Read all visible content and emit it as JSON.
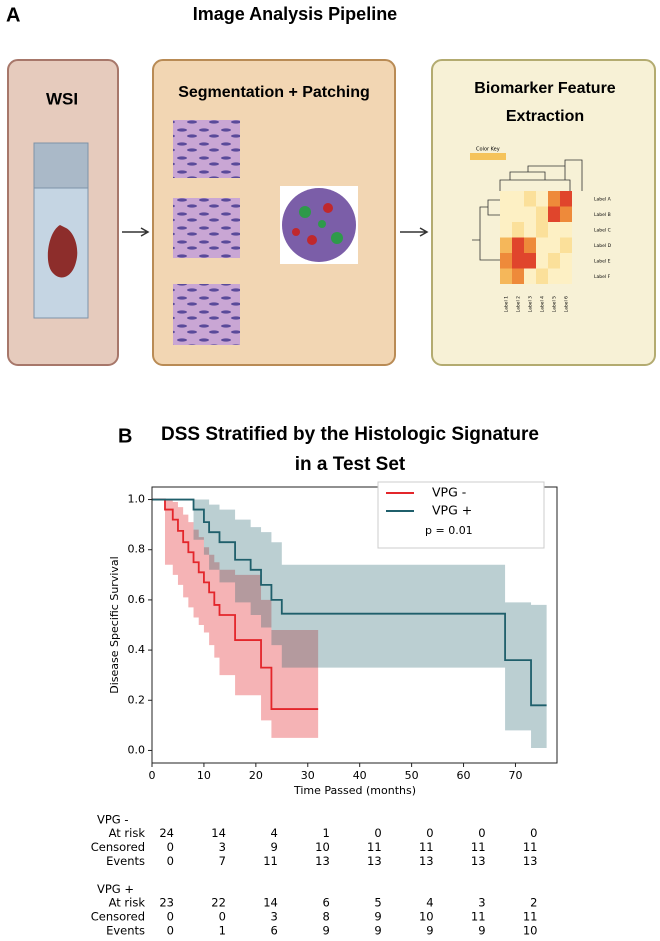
{
  "panel_a": {
    "label": "A",
    "title": "Image Analysis Pipeline",
    "boxes": [
      "WSI",
      "Segmentation + Patching",
      "Biomarker Feature Extraction"
    ],
    "heatmap": {
      "key_label": "Color Key",
      "row_labels": [
        "Label A",
        "Label B",
        "Label C",
        "Label D",
        "Label E",
        "Label F"
      ],
      "col_labels": [
        "Label 1",
        "Label 2",
        "Label 3",
        "Label 4",
        "Label 5",
        "Label 6"
      ]
    }
  },
  "chart_data": {
    "type": "step",
    "label": "B",
    "title": "DSS Stratified by the Histologic Signature in a Test Set",
    "x_label": "Time Passed (months)",
    "y_label": "Disease Specific Survival",
    "xlim": [
      0,
      78
    ],
    "ylim": [
      -0.05,
      1.05
    ],
    "xticks": [
      0,
      10,
      20,
      30,
      40,
      50,
      60,
      70
    ],
    "yticks": [
      {
        "value": 0,
        "label": "0.0"
      },
      {
        "value": 0.2,
        "label": "0.2"
      },
      {
        "value": 0.4,
        "label": "0.4"
      },
      {
        "value": 0.6,
        "label": "0.6"
      },
      {
        "value": 0.8,
        "label": "0.8"
      },
      {
        "value": 1,
        "label": "1.0"
      }
    ],
    "legend": "upper right",
    "annotation": "p = 0.01",
    "series": [
      {
        "name": "VPG -",
        "color": "#e3262b",
        "x": [
          0,
          2.5,
          4,
          5,
          6,
          7,
          8,
          9,
          10,
          11,
          12,
          13,
          16,
          21,
          23,
          32
        ],
        "values": [
          1,
          0.96,
          0.92,
          0.875,
          0.83,
          0.79,
          0.75,
          0.71,
          0.67,
          0.63,
          0.58,
          0.54,
          0.44,
          0.33,
          0.165,
          0.165
        ],
        "upper": [
          1,
          1,
          0.99,
          0.97,
          0.94,
          0.91,
          0.88,
          0.85,
          0.81,
          0.78,
          0.75,
          0.72,
          0.7,
          0.6,
          0.48,
          0.48
        ],
        "lower": [
          1,
          0.74,
          0.7,
          0.66,
          0.61,
          0.57,
          0.53,
          0.5,
          0.47,
          0.42,
          0.37,
          0.3,
          0.22,
          0.12,
          0.05,
          0.05
        ]
      },
      {
        "name": "VPG +",
        "color": "#1f5f6b",
        "x": [
          0,
          8,
          10,
          11,
          13,
          16,
          19,
          21,
          23,
          25,
          68,
          73,
          76
        ],
        "values": [
          1,
          0.96,
          0.91,
          0.87,
          0.83,
          0.76,
          0.72,
          0.66,
          0.6,
          0.545,
          0.36,
          0.18,
          0.18
        ],
        "upper": [
          1,
          1,
          1,
          0.98,
          0.96,
          0.92,
          0.89,
          0.87,
          0.83,
          0.74,
          0.59,
          0.58,
          0.58
        ],
        "lower": [
          1,
          0.84,
          0.78,
          0.72,
          0.67,
          0.59,
          0.54,
          0.49,
          0.42,
          0.33,
          0.08,
          0.01,
          0.01
        ]
      }
    ],
    "risk_table": [
      {
        "name": "VPG -",
        "rows": [
          {
            "label": "At risk",
            "values": [
              24,
              14,
              4,
              1,
              0,
              0,
              0,
              0
            ]
          },
          {
            "label": "Censored",
            "values": [
              0,
              3,
              9,
              10,
              11,
              11,
              11,
              11
            ]
          },
          {
            "label": "Events",
            "values": [
              0,
              7,
              11,
              13,
              13,
              13,
              13,
              13
            ]
          }
        ]
      },
      {
        "name": "VPG +",
        "rows": [
          {
            "label": "At risk",
            "values": [
              23,
              22,
              14,
              6,
              5,
              4,
              3,
              2
            ]
          },
          {
            "label": "Censored",
            "values": [
              0,
              0,
              3,
              8,
              9,
              10,
              11,
              11
            ]
          },
          {
            "label": "Events",
            "values": [
              0,
              1,
              6,
              9,
              9,
              9,
              9,
              10
            ]
          }
        ]
      }
    ]
  }
}
